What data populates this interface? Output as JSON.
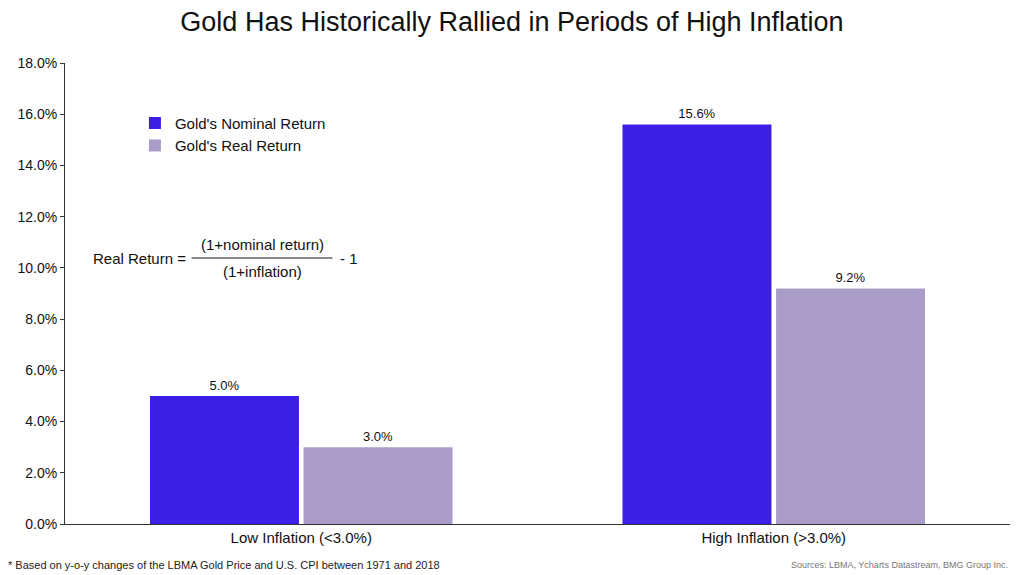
{
  "chart_data": {
    "type": "bar",
    "title": "Gold Has Historically Rallied in Periods of High Inflation",
    "categories": [
      "Low Inflation (<3.0%)",
      "High Inflation (>3.0%)"
    ],
    "series": [
      {
        "name": "Gold's Nominal Return",
        "color": "#3c1fe4",
        "values": [
          5.0,
          15.6
        ],
        "value_labels": [
          "5.0%",
          "15.6%"
        ]
      },
      {
        "name": "Gold's Real Return",
        "color": "#aa9cc9",
        "values": [
          3.0,
          9.2
        ],
        "value_labels": [
          "3.0%",
          "9.2%"
        ]
      }
    ],
    "ylim": [
      0,
      18
    ],
    "yticks": [
      {
        "value": 0,
        "label": "0.0%"
      },
      {
        "value": 2,
        "label": "2.0%"
      },
      {
        "value": 4,
        "label": "4.0%"
      },
      {
        "value": 6,
        "label": "6.0%"
      },
      {
        "value": 8,
        "label": "8.0%"
      },
      {
        "value": 10,
        "label": "10.0%"
      },
      {
        "value": 12,
        "label": "12.0%"
      },
      {
        "value": 14,
        "label": "14.0%"
      },
      {
        "value": 16,
        "label": "16.0%"
      },
      {
        "value": 18,
        "label": "18.0%"
      }
    ],
    "grid": false,
    "legend": "upper left",
    "data_labels": true,
    "annotations": [
      "Real Return =",
      "(1+nominal return)",
      "(1+inflation)",
      "- 1"
    ],
    "footnote": "* Based on y-o-y changes of the LBMA Gold Price and U.S. CPI between 1971 and 2018",
    "source": "Sources: LBMA, Ycharts Datastream, BMG Group Inc."
  }
}
